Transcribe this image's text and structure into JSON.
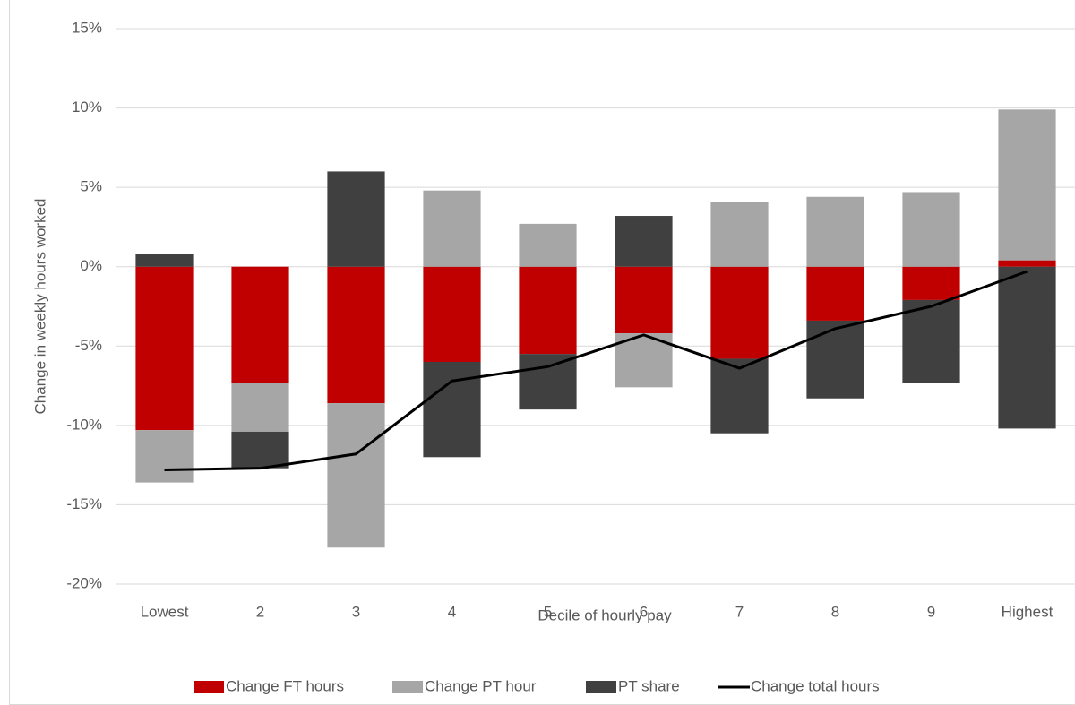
{
  "chart_data": {
    "type": "bar",
    "stacked": true,
    "x_label": "Decile of hourly pay",
    "y_label": "Change in weekly hours worked",
    "categories": [
      "Lowest",
      "2",
      "3",
      "4",
      "5",
      "6",
      "7",
      "8",
      "9",
      "Highest"
    ],
    "series": [
      {
        "name": "Change FT hours",
        "color": "#c00000",
        "values": [
          -10.3,
          -7.3,
          -8.6,
          -6.0,
          -5.5,
          -4.2,
          -5.8,
          -3.4,
          -2.1,
          0.4
        ]
      },
      {
        "name": "Change PT hour",
        "color": "#a6a6a6",
        "values": [
          -3.3,
          -3.1,
          -9.1,
          4.8,
          2.7,
          -3.4,
          4.1,
          4.4,
          4.7,
          9.5
        ]
      },
      {
        "name": "PT share",
        "color": "#404040",
        "values": [
          0.8,
          -2.3,
          6.0,
          -6.0,
          -3.5,
          3.2,
          -4.7,
          -4.9,
          -5.2,
          -10.2
        ]
      },
      {
        "name": "Change total hours",
        "color": "#000000",
        "type": "line",
        "values": [
          -12.8,
          -12.7,
          -11.8,
          -7.2,
          -6.3,
          -4.3,
          -6.4,
          -3.9,
          -2.5,
          -0.3
        ]
      }
    ],
    "ylim": [
      -20,
      15
    ],
    "yticks": [
      {
        "value": -20,
        "label": "-20%"
      },
      {
        "value": -15,
        "label": "-15%"
      },
      {
        "value": -10,
        "label": "-10%"
      },
      {
        "value": -5,
        "label": "-5%"
      },
      {
        "value": 0,
        "label": "0%"
      },
      {
        "value": 5,
        "label": "5%"
      },
      {
        "value": 10,
        "label": "10%"
      },
      {
        "value": 15,
        "label": "15%"
      }
    ],
    "grid": true,
    "legend": "bottom"
  }
}
